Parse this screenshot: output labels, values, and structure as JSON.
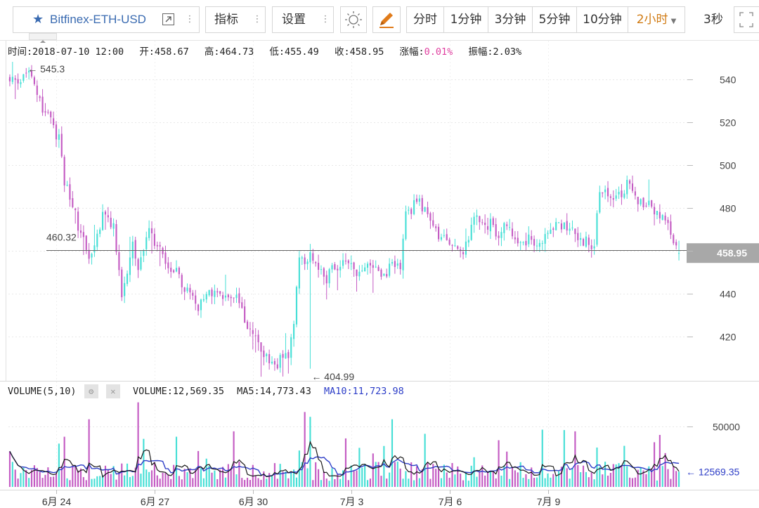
{
  "toolbar": {
    "symbol": "Bitfinex-ETH-USD",
    "indicator_label": "指标",
    "settings_label": "设置",
    "intervals": [
      "分时",
      "1分钟",
      "3分钟",
      "5分钟",
      "10分钟"
    ],
    "active_interval": "2小时",
    "refresh": "3秒"
  },
  "info": {
    "time": "时间:2018-07-10 12:00",
    "open": "开:458.67",
    "high": "高:464.73",
    "low": "低:455.49",
    "close": "收:458.95",
    "change_label": "涨幅:",
    "change_value": "0.01%",
    "amplitude": "振幅:2.03%"
  },
  "volume_info": {
    "title": "VOLUME(5,10)",
    "volume": "VOLUME:12,569.35",
    "ma5": "MA5:14,773.43",
    "ma10": "MA10:11,723.98"
  },
  "colors": {
    "up": "#46dfd6",
    "down": "#c45bc3",
    "ma5": "#1a1a1a",
    "ma10": "#2e3ec7",
    "grid": "#e8e8e8",
    "current_price_bg": "#a8a8a8",
    "accent": "#d07a12"
  },
  "chart_data": {
    "type": "candlestick",
    "price_axis": {
      "min": 400,
      "max": 550,
      "ticks": [
        420,
        440,
        460,
        480,
        500,
        520,
        540
      ],
      "tick_labels": [
        "420",
        "440",
        "",
        "480",
        "500",
        "520",
        "540"
      ]
    },
    "volume_axis": {
      "min": 0,
      "max": 65000,
      "ticks": [
        50000
      ],
      "tick_labels": [
        "50000"
      ]
    },
    "x_labels": [
      {
        "label": "6月 24",
        "bar": 17
      },
      {
        "label": "6月 27",
        "bar": 53
      },
      {
        "label": "6月 30",
        "bar": 89
      },
      {
        "label": "7月 3",
        "bar": 125
      },
      {
        "label": "7月 6",
        "bar": 161
      },
      {
        "label": "7月 9",
        "bar": 197
      }
    ],
    "max_marker": {
      "label": "← 545.3",
      "value": 545.3,
      "bar": 6
    },
    "min_marker": {
      "label": "← 404.99",
      "value": 404.99,
      "bar": 110
    },
    "horizontal_line": {
      "label": "460.32",
      "value": 460.32
    },
    "current_price": {
      "label": "458.95",
      "value": 458.95
    },
    "current_volume": {
      "label": "← 12569.35",
      "value": 12569.35
    },
    "anchors": [
      [
        0,
        542
      ],
      [
        3,
        538
      ],
      [
        6,
        545
      ],
      [
        10,
        532
      ],
      [
        14,
        522
      ],
      [
        18,
        512
      ],
      [
        20,
        492
      ],
      [
        23,
        480
      ],
      [
        26,
        468
      ],
      [
        29,
        455
      ],
      [
        32,
        470
      ],
      [
        35,
        478
      ],
      [
        38,
        472
      ],
      [
        41,
        440
      ],
      [
        43,
        452
      ],
      [
        45,
        463
      ],
      [
        47,
        452
      ],
      [
        49,
        460
      ],
      [
        51,
        473
      ],
      [
        53,
        465
      ],
      [
        56,
        458
      ],
      [
        59,
        453
      ],
      [
        62,
        448
      ],
      [
        64,
        443
      ],
      [
        66,
        438
      ],
      [
        69,
        433
      ],
      [
        72,
        438
      ],
      [
        75,
        443
      ],
      [
        78,
        436
      ],
      [
        81,
        440
      ],
      [
        84,
        435
      ],
      [
        86,
        428
      ],
      [
        88,
        423
      ],
      [
        90,
        418
      ],
      [
        92,
        413
      ],
      [
        95,
        409
      ],
      [
        98,
        406
      ],
      [
        100,
        412
      ],
      [
        102,
        412
      ],
      [
        104,
        428
      ],
      [
        106,
        458
      ],
      [
        108,
        455
      ],
      [
        110,
        458
      ],
      [
        113,
        452
      ],
      [
        116,
        447
      ],
      [
        119,
        452
      ],
      [
        122,
        455
      ],
      [
        125,
        452
      ],
      [
        128,
        450
      ],
      [
        131,
        453
      ],
      [
        134,
        452
      ],
      [
        137,
        450
      ],
      [
        140,
        452
      ],
      [
        143,
        453
      ],
      [
        145,
        476
      ],
      [
        147,
        480
      ],
      [
        150,
        482
      ],
      [
        152,
        478
      ],
      [
        155,
        470
      ],
      [
        158,
        466
      ],
      [
        161,
        463
      ],
      [
        164,
        458
      ],
      [
        166,
        460
      ],
      [
        168,
        465
      ],
      [
        170,
        476
      ],
      [
        173,
        474
      ],
      [
        176,
        472
      ],
      [
        178,
        468
      ],
      [
        181,
        470
      ],
      [
        184,
        468
      ],
      [
        187,
        463
      ],
      [
        190,
        465
      ],
      [
        193,
        461
      ],
      [
        196,
        467
      ],
      [
        199,
        472
      ],
      [
        202,
        471
      ],
      [
        205,
        470
      ],
      [
        208,
        467
      ],
      [
        211,
        464
      ],
      [
        214,
        462
      ],
      [
        216,
        490
      ],
      [
        218,
        487
      ],
      [
        221,
        486
      ],
      [
        224,
        488
      ],
      [
        227,
        492
      ],
      [
        229,
        486
      ],
      [
        231,
        482
      ],
      [
        234,
        482
      ],
      [
        237,
        478
      ],
      [
        239,
        474
      ],
      [
        241,
        470
      ],
      [
        244,
        462
      ],
      [
        245,
        458.95
      ]
    ],
    "series": [
      {
        "name": "MA5",
        "values": "computed"
      },
      {
        "name": "MA10",
        "values": "computed"
      }
    ]
  }
}
